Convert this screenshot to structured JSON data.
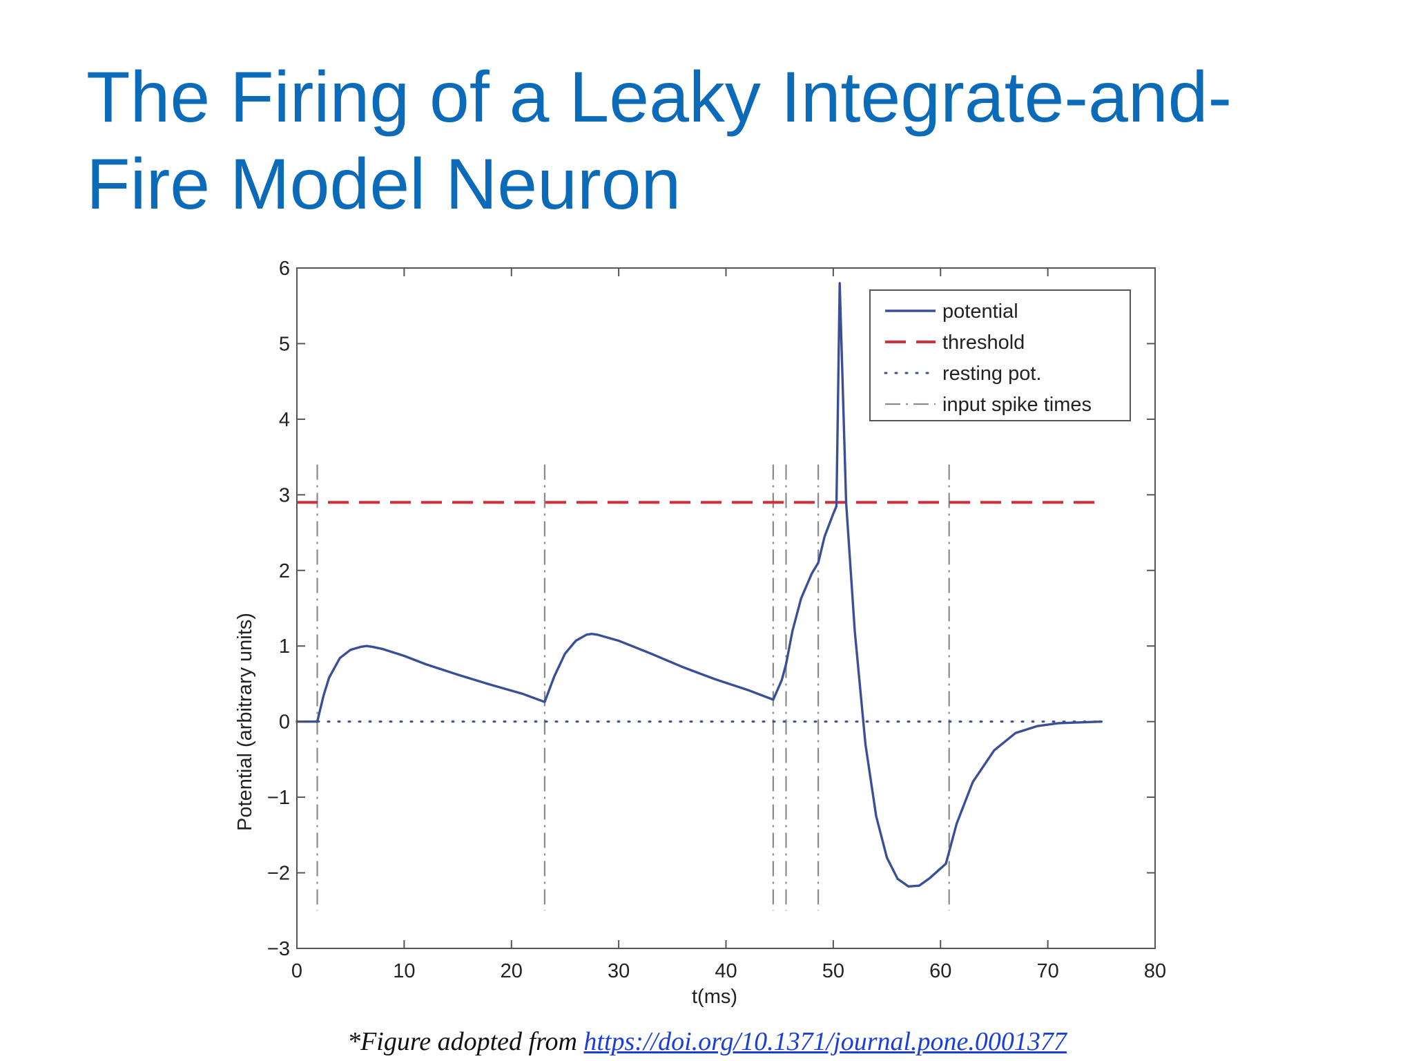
{
  "slide": {
    "title_line1": "The Firing of a Leaky Integrate-and-",
    "title_line2": "Fire Model Neuron",
    "caption_prefix": "*Figure adopted from ",
    "caption_link": "https://doi.org/10.1371/journal.pone.0001377"
  },
  "chart_data": {
    "type": "line",
    "xlabel": "t(ms)",
    "ylabel": "Potential (arbitrary units)",
    "xlim": [
      0,
      80
    ],
    "ylim": [
      -3,
      6
    ],
    "xticks": [
      0,
      10,
      20,
      30,
      40,
      50,
      60,
      70,
      80
    ],
    "yticks": [
      -3,
      -2,
      -1,
      0,
      1,
      2,
      3,
      4,
      5,
      6
    ],
    "grid": false,
    "legend": {
      "position": "top-right",
      "entries": [
        "potential",
        "threshold",
        "resting pot.",
        "input spike times"
      ]
    },
    "colors": {
      "potential": "#3a4f96",
      "threshold": "#d62d3a",
      "resting": "#3a4f96",
      "spikes": "#8a8a8a"
    },
    "series": [
      {
        "name": "potential",
        "style": "solid",
        "x": [
          0,
          1.9,
          2.5,
          3,
          4,
          5,
          6,
          6.5,
          7,
          8,
          10,
          12,
          15,
          18,
          21,
          23.1,
          24,
          25,
          26,
          27,
          27.5,
          28,
          30,
          33,
          36,
          39,
          42,
          44.4,
          45.2,
          45.6,
          46.2,
          47,
          48,
          48.6,
          49.2,
          50,
          50.3,
          50.6,
          51.2,
          52,
          53,
          54,
          55,
          56,
          57,
          58,
          59,
          60.5,
          61.5,
          63,
          65,
          67,
          69,
          71,
          73,
          75
        ],
        "y": [
          0,
          0,
          0.35,
          0.58,
          0.84,
          0.95,
          0.99,
          1.0,
          0.99,
          0.96,
          0.87,
          0.76,
          0.62,
          0.49,
          0.37,
          0.26,
          0.6,
          0.9,
          1.07,
          1.15,
          1.16,
          1.15,
          1.07,
          0.9,
          0.72,
          0.56,
          0.42,
          0.29,
          0.55,
          0.76,
          1.2,
          1.63,
          1.96,
          2.1,
          2.45,
          2.75,
          2.85,
          5.8,
          2.9,
          1.2,
          -0.3,
          -1.25,
          -1.8,
          -2.08,
          -2.18,
          -2.17,
          -2.07,
          -1.88,
          -1.35,
          -0.8,
          -0.38,
          -0.15,
          -0.06,
          -0.02,
          -0.01,
          0
        ]
      },
      {
        "name": "threshold",
        "style": "dashed",
        "x": [
          0,
          75
        ],
        "y": [
          2.9,
          2.9
        ]
      },
      {
        "name": "resting pot.",
        "style": "dotted",
        "x": [
          0,
          75
        ],
        "y": [
          0,
          0
        ]
      },
      {
        "name": "input spike times",
        "style": "dashdot",
        "times": [
          1.9,
          23.1,
          44.4,
          45.6,
          48.6,
          60.8
        ],
        "ymin": -2.5,
        "ymax": 3.4
      }
    ]
  }
}
